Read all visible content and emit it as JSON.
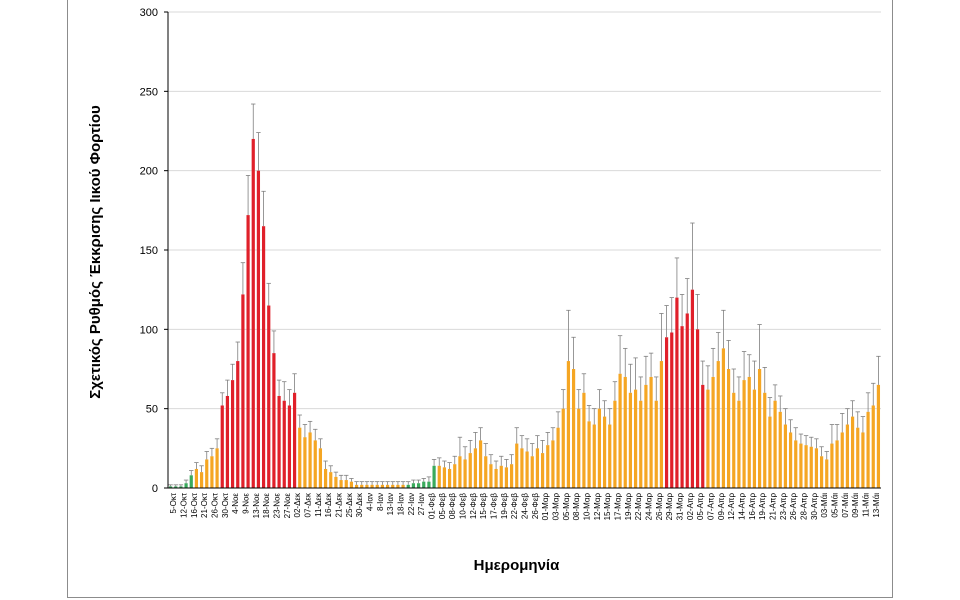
{
  "chart_data": {
    "type": "bar",
    "title": "",
    "xlabel": "Ημερομηνία",
    "ylabel": "Σχετικός Ρυθμός Έκκρισης Ιικού Φορτίου",
    "ylim": [
      0,
      300
    ],
    "yticks": [
      "0",
      "50",
      "100",
      "150",
      "200",
      "250",
      "300"
    ],
    "grid": true,
    "colors": {
      "green": "#3aaa5c",
      "orange": "#f5a623",
      "red": "#e0202a",
      "error": "#7f7f7f"
    },
    "xticklabels": [
      "5-Οκτ",
      "12-Οκτ",
      "16-Οκτ",
      "21-Οκτ",
      "26-Οκτ",
      "30-Οκτ",
      "4-Νοε",
      "9-Νοε",
      "13-Νοε",
      "18-Νοε",
      "23-Νοε",
      "27-Νοε",
      "02-Δεκ",
      "07-Δεκ",
      "11-Δεκ",
      "16-Δεκ",
      "21-Δεκ",
      "25-Δεκ",
      "30-Δεκ",
      "4-Ιαν",
      "8-Ιαν",
      "13-Ιαν",
      "18-Ιαν",
      "22-Ιαν",
      "27-Ιαν",
      "01-Φεβ",
      "05-Φεβ",
      "08-Φεβ",
      "10-Φεβ",
      "12-Φεβ",
      "15-Φεβ",
      "17-Φεβ",
      "19-Φεβ",
      "22-Φεβ",
      "24-Φεβ",
      "26-Φεβ",
      "01-Μαρ",
      "03-Μαρ",
      "05-Μαρ",
      "08-Μαρ",
      "10-Μαρ",
      "12-Μαρ",
      "15-Μαρ",
      "17-Μαρ",
      "19-Μαρ",
      "22-Μαρ",
      "24-Μαρ",
      "26-Μαρ",
      "29-Μαρ",
      "31-Μαρ",
      "02-Απρ",
      "05-Απρ",
      "07-Απρ",
      "09-Απρ",
      "12-Απρ",
      "14-Απρ",
      "16-Απρ",
      "19-Απρ",
      "21-Απρ",
      "23-Απρ",
      "26-Απρ",
      "28-Απρ",
      "30-Απρ",
      "03-Μάι",
      "05-Μάι",
      "07-Μάι",
      "09-Μάι",
      "11-Μάι",
      "13-Μάι"
    ],
    "values": [
      1,
      1,
      1,
      3,
      8,
      12,
      10,
      18,
      20,
      25,
      52,
      58,
      68,
      80,
      122,
      172,
      220,
      200,
      165,
      115,
      85,
      58,
      55,
      52,
      60,
      38,
      32,
      35,
      30,
      25,
      12,
      10,
      7,
      5,
      5,
      4,
      2,
      2,
      2,
      2,
      2,
      2,
      2,
      2,
      2,
      2,
      2,
      3,
      3,
      4,
      4,
      14,
      14,
      13,
      12,
      15,
      20,
      18,
      22,
      25,
      30,
      20,
      15,
      12,
      14,
      13,
      15,
      28,
      25,
      23,
      20,
      25,
      22,
      27,
      30,
      38,
      50,
      80,
      75,
      50,
      60,
      42,
      40,
      50,
      45,
      40,
      55,
      72,
      70,
      60,
      62,
      55,
      65,
      70,
      55,
      80,
      95,
      98,
      120,
      102,
      110,
      125,
      100,
      65,
      62,
      70,
      80,
      88,
      75,
      60,
      55,
      68,
      70,
      62,
      75,
      60,
      45,
      55,
      48,
      40,
      35,
      30,
      28,
      27,
      26,
      25,
      20,
      18,
      28,
      30,
      35,
      40,
      45,
      38,
      35,
      48,
      52,
      65
    ],
    "errors": [
      1,
      1,
      1,
      2,
      3,
      4,
      4,
      5,
      5,
      6,
      8,
      10,
      10,
      12,
      20,
      25,
      22,
      24,
      22,
      14,
      14,
      10,
      12,
      10,
      12,
      8,
      8,
      7,
      7,
      6,
      5,
      4,
      3,
      3,
      3,
      2,
      2,
      2,
      2,
      2,
      2,
      2,
      2,
      2,
      2,
      2,
      2,
      2,
      2,
      2,
      3,
      4,
      5,
      4,
      4,
      5,
      12,
      8,
      8,
      10,
      8,
      8,
      6,
      5,
      6,
      5,
      6,
      10,
      8,
      8,
      8,
      8,
      8,
      8,
      8,
      10,
      12,
      32,
      20,
      12,
      12,
      10,
      10,
      12,
      10,
      10,
      12,
      24,
      18,
      18,
      20,
      15,
      18,
      15,
      15,
      30,
      20,
      22,
      25,
      20,
      22,
      42,
      22,
      15,
      15,
      18,
      18,
      24,
      18,
      15,
      15,
      18,
      14,
      18,
      28,
      16,
      12,
      10,
      10,
      10,
      8,
      8,
      6,
      6,
      6,
      6,
      6,
      5,
      12,
      10,
      12,
      10,
      10,
      10,
      10,
      12,
      14,
      18
    ],
    "color_segments": [
      {
        "color": "green",
        "count": 5
      },
      {
        "color": "orange",
        "count": 5
      },
      {
        "color": "red",
        "count": 15
      },
      {
        "color": "orange",
        "count": 21
      },
      {
        "color": "green",
        "count": 6
      },
      {
        "color": "orange",
        "count": 44
      },
      {
        "color": "red",
        "count": 8
      },
      {
        "color": "orange",
        "count": 34
      }
    ]
  }
}
